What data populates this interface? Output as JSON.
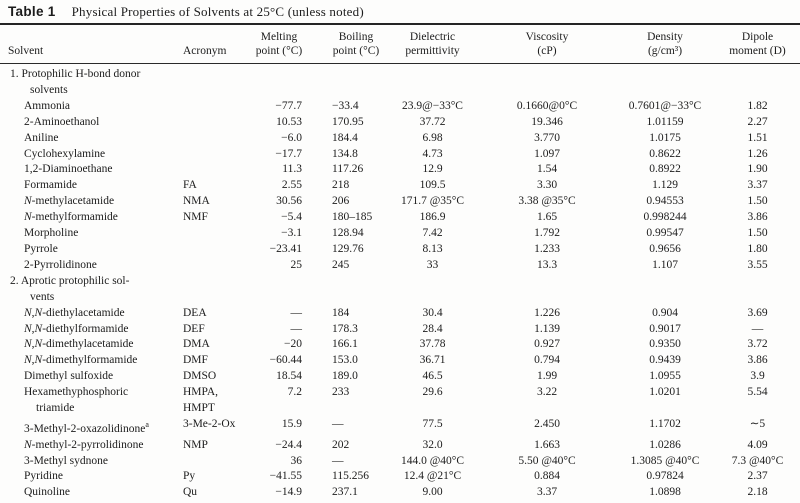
{
  "title": {
    "label": "Table 1",
    "text": "Physical Properties of Solvents at 25°C (unless noted)"
  },
  "columns": [
    [
      "Solvent"
    ],
    [
      "Acronym"
    ],
    [
      "Melting",
      "point (°C)"
    ],
    [
      "Boiling",
      "point (°C)"
    ],
    [
      "Dielectric",
      "permittivity"
    ],
    [
      "Viscosity",
      "(cP)"
    ],
    [
      "Density",
      "(g/cm³)"
    ],
    [
      "Dipole",
      "moment (D)"
    ]
  ],
  "sections": [
    {
      "heading_lines": [
        "1. Protophilic H-bond donor",
        "solvents"
      ],
      "rows": [
        {
          "solvent": "Ammonia",
          "acronym": "",
          "melting": "−77.7",
          "boiling": "−33.4",
          "dielectric": "23.9@−33°C",
          "viscosity": "0.1660@0°C",
          "density": "0.7601@−33°C",
          "dipole": "1.82"
        },
        {
          "solvent": "2-Aminoethanol",
          "acronym": "",
          "melting": "10.53",
          "boiling": "170.95",
          "dielectric": "37.72",
          "viscosity": "19.346",
          "density": "1.01159",
          "dipole": "2.27"
        },
        {
          "solvent": "Aniline",
          "acronym": "",
          "melting": "−6.0",
          "boiling": "184.4",
          "dielectric": "6.98",
          "viscosity": "3.770",
          "density": "1.0175",
          "dipole": "1.51"
        },
        {
          "solvent": "Cyclohexylamine",
          "acronym": "",
          "melting": "−17.7",
          "boiling": "134.8",
          "dielectric": "4.73",
          "viscosity": "1.097",
          "density": "0.8622",
          "dipole": "1.26"
        },
        {
          "solvent": "1,2-Diaminoethane",
          "acronym": "",
          "melting": "11.3",
          "boiling": "117.26",
          "dielectric": "12.9",
          "viscosity": "1.54",
          "density": "0.8922",
          "dipole": "1.90"
        },
        {
          "solvent": "Formamide",
          "acronym": "FA",
          "melting": "2.55",
          "boiling": "218",
          "dielectric": "109.5",
          "viscosity": "3.30",
          "density": "1.129",
          "dipole": "3.37"
        },
        {
          "solvent": "<i>N</i>-methylacetamide",
          "acronym": "NMA",
          "melting": "30.56",
          "boiling": "206",
          "dielectric": "171.7 @35°C",
          "viscosity": "3.38 @35°C",
          "density": "0.94553",
          "dipole": "1.50"
        },
        {
          "solvent": "<i>N</i>-methylformamide",
          "acronym": "NMF",
          "melting": "−5.4",
          "boiling": "180–185",
          "dielectric": "186.9",
          "viscosity": "1.65",
          "density": "0.998244",
          "dipole": "3.86"
        },
        {
          "solvent": "Morpholine",
          "acronym": "",
          "melting": "−3.1",
          "boiling": "128.94",
          "dielectric": "7.42",
          "viscosity": "1.792",
          "density": "0.99547",
          "dipole": "1.50"
        },
        {
          "solvent": "Pyrrole",
          "acronym": "",
          "melting": "−23.41",
          "boiling": "129.76",
          "dielectric": "8.13",
          "viscosity": "1.233",
          "density": "0.9656",
          "dipole": "1.80"
        },
        {
          "solvent": "2-Pyrrolidinone",
          "acronym": "",
          "melting": "25",
          "boiling": "245",
          "dielectric": "33",
          "viscosity": "13.3",
          "density": "1.107",
          "dipole": "3.55"
        }
      ]
    },
    {
      "heading_lines": [
        "2. Aprotic protophilic sol-",
        "vents"
      ],
      "rows": [
        {
          "solvent": "<i>N</i>,<i>N</i>-diethylacetamide",
          "acronym": "DEA",
          "melting": "—",
          "boiling": "184",
          "dielectric": "30.4",
          "viscosity": "1.226",
          "density": "0.904",
          "dipole": "3.69"
        },
        {
          "solvent": "<i>N</i>,<i>N</i>-diethylformamide",
          "acronym": "DEF",
          "melting": "—",
          "boiling": "178.3",
          "dielectric": "28.4",
          "viscosity": "1.139",
          "density": "0.9017",
          "dipole": "—"
        },
        {
          "solvent": "<i>N</i>,<i>N</i>-dimethylacetamide",
          "acronym": "DMA",
          "melting": "−20",
          "boiling": "166.1",
          "dielectric": "37.78",
          "viscosity": "0.927",
          "density": "0.9350",
          "dipole": "3.72"
        },
        {
          "solvent": "<i>N</i>,<i>N</i>-dimethylformamide",
          "acronym": "DMF",
          "melting": "−60.44",
          "boiling": "153.0",
          "dielectric": "36.71",
          "viscosity": "0.794",
          "density": "0.9439",
          "dipole": "3.86"
        },
        {
          "solvent": "Dimethyl sulfoxide",
          "acronym": "DMSO",
          "melting": "18.54",
          "boiling": "189.0",
          "dielectric": "46.5",
          "viscosity": "1.99",
          "density": "1.0955",
          "dipole": "3.9"
        },
        {
          "solvent": [
            "Hexamethyphosphoric",
            "triamide"
          ],
          "acronym": [
            "HMPA,",
            "HMPT"
          ],
          "melting": "7.2",
          "boiling": "233",
          "dielectric": "29.6",
          "viscosity": "3.22",
          "density": "1.0201",
          "dipole": "5.54"
        },
        {
          "solvent": "3-Methyl-2-oxazolidinone<sup>a</sup>",
          "acronym": "3-Me-2-Ox",
          "melting": "15.9",
          "boiling": "—",
          "dielectric": "77.5",
          "viscosity": "2.450",
          "density": "1.1702",
          "dipole": "∼5"
        },
        {
          "solvent": "<i>N</i>-methyl-2-pyrrolidinone",
          "acronym": "NMP",
          "melting": "−24.4",
          "boiling": "202",
          "dielectric": "32.0",
          "viscosity": "1.663",
          "density": "1.0286",
          "dipole": "4.09"
        },
        {
          "solvent": "3-Methyl sydnone",
          "acronym": "",
          "melting": "36",
          "boiling": "—",
          "dielectric": "144.0 @40°C",
          "viscosity": "5.50 @40°C",
          "density": "1.3085 @40°C",
          "dipole": "7.3 @40°C"
        },
        {
          "solvent": "Pyridine",
          "acronym": "Py",
          "melting": "−41.55",
          "boiling": "115.256",
          "dielectric": "12.4 @21°C",
          "viscosity": "0.884",
          "density": "0.97824",
          "dipole": "2.37"
        },
        {
          "solvent": "Quinoline",
          "acronym": "Qu",
          "melting": "−14.9",
          "boiling": "237.1",
          "dielectric": "9.00",
          "viscosity": "3.37",
          "density": "1.0898",
          "dipole": "2.18"
        }
      ]
    }
  ]
}
